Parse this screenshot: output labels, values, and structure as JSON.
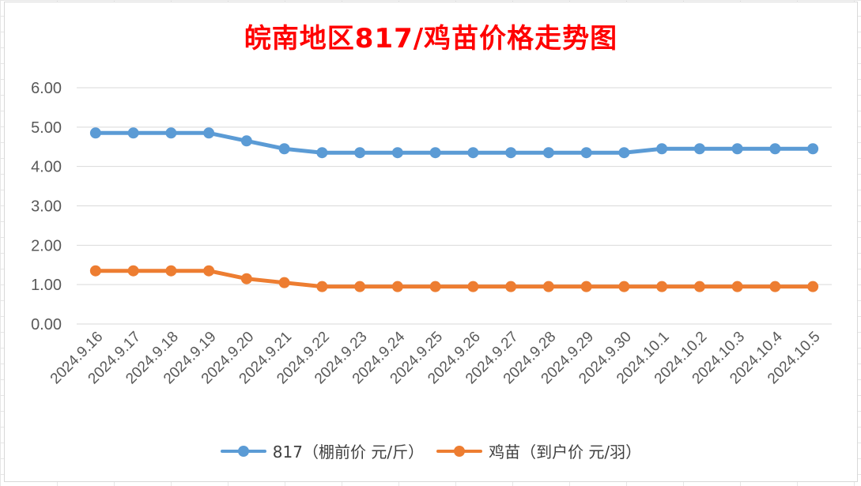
{
  "chart_data": {
    "type": "line",
    "title": "皖南地区817/鸡苗价格走势图",
    "xlabel": "",
    "ylabel": "",
    "categories": [
      "2024.9.16",
      "2024.9.17",
      "2024.9.18",
      "2024.9.19",
      "2024.9.20",
      "2024.9.21",
      "2024.9.22",
      "2024.9.23",
      "2024.9.24",
      "2024.9.25",
      "2024.9.26",
      "2024.9.27",
      "2024.9.28",
      "2024.9.29",
      "2024.9.30",
      "2024.10.1",
      "2024.10.2",
      "2024.10.3",
      "2024.10.4",
      "2024.10.5"
    ],
    "yticks": [
      "0.00",
      "1.00",
      "2.00",
      "3.00",
      "4.00",
      "5.00",
      "6.00"
    ],
    "ylim": [
      0,
      6
    ],
    "grid": true,
    "legend_position": "bottom",
    "series": [
      {
        "name": "817（棚前价 元/斤）",
        "color": "#5b9bd5",
        "values": [
          4.85,
          4.85,
          4.85,
          4.85,
          4.65,
          4.45,
          4.35,
          4.35,
          4.35,
          4.35,
          4.35,
          4.35,
          4.35,
          4.35,
          4.35,
          4.45,
          4.45,
          4.45,
          4.45,
          4.45
        ]
      },
      {
        "name": "鸡苗（到户价 元/羽）",
        "color": "#ed7d31",
        "values": [
          1.35,
          1.35,
          1.35,
          1.35,
          1.15,
          1.05,
          0.95,
          0.95,
          0.95,
          0.95,
          0.95,
          0.95,
          0.95,
          0.95,
          0.95,
          0.95,
          0.95,
          0.95,
          0.95,
          0.95
        ]
      }
    ]
  }
}
